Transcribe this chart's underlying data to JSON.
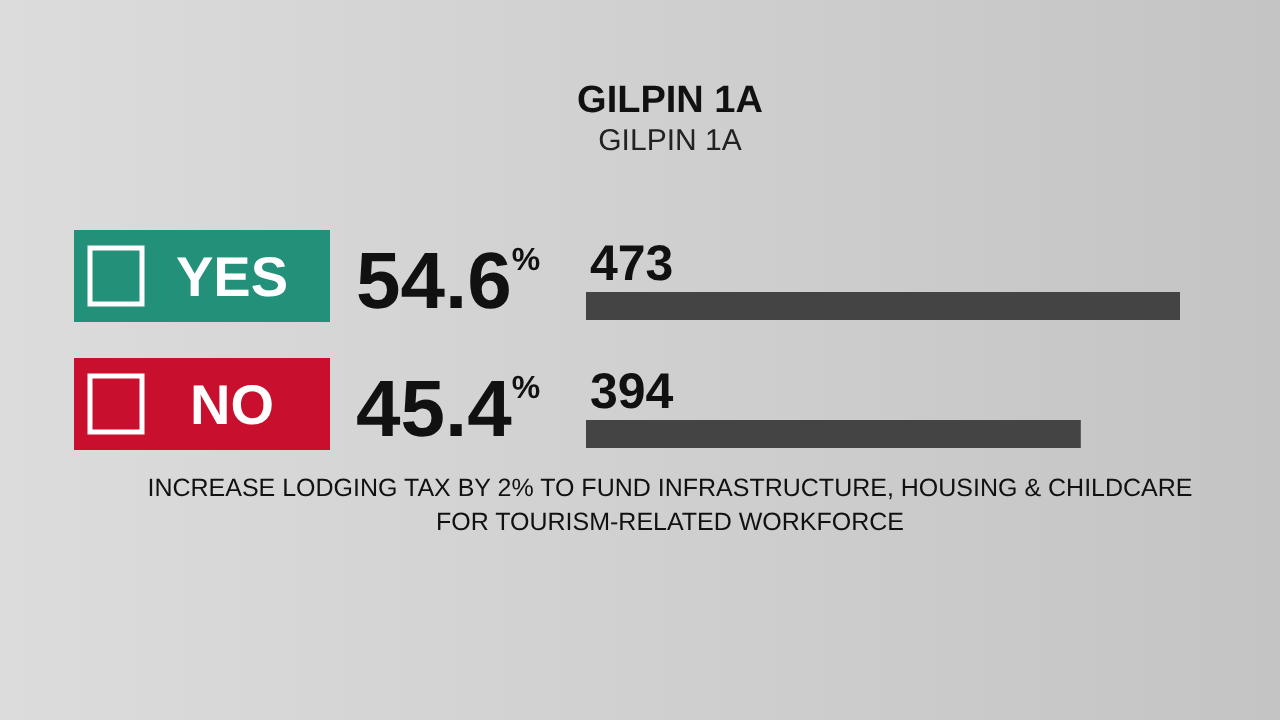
{
  "chart_data": {
    "type": "bar",
    "orientation": "horizontal",
    "title": "GILPIN 1A",
    "subtitle": "GILPIN 1A",
    "categories": [
      "YES",
      "NO"
    ],
    "values": [
      473,
      394
    ],
    "color": "#444444",
    "data_labels": true,
    "annotations": [
      "54.6$^{%}$",
      "45.4$^{%}$",
      "INCREASE LODGING TAX BY 2% TO FUND INFRASTRUCTURE, HOUSING & CHILDCARE\nFOR TOURISM-RELATED WORKFORCE"
    ]
  }
}
